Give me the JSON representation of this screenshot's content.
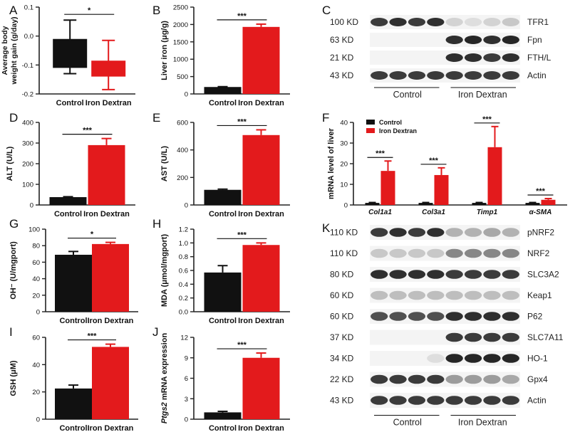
{
  "colors": {
    "control": "#111111",
    "iron": "#e31a1c",
    "axis": "#222222",
    "band": "#1a1a1a"
  },
  "group_labels": [
    "Control",
    "Iron Dextran"
  ],
  "chart_data": [
    {
      "panel": "A",
      "type": "box",
      "ylabel": "Average body weight gain (g/day)",
      "ylim": [
        -0.2,
        0.1
      ],
      "yticks": [
        "0.1",
        "0.0",
        "-0.1",
        "-0.2"
      ],
      "categories": [
        "Control",
        "Iron Dextran"
      ],
      "boxes": [
        {
          "whisker_low": -0.13,
          "q1": -0.11,
          "median": -0.11,
          "q3": -0.01,
          "whisker_high": 0.055
        },
        {
          "whisker_low": -0.185,
          "q1": -0.14,
          "median": -0.14,
          "q3": -0.085,
          "whisker_high": -0.015
        }
      ],
      "significance": "*"
    },
    {
      "panel": "B",
      "type": "bar",
      "ylabel": "Liver iron (μg/g)",
      "ylim": [
        0,
        2500
      ],
      "yticks": [
        "0",
        "500",
        "1000",
        "1500",
        "2000",
        "2500"
      ],
      "categories": [
        "Control",
        "Iron Dextran"
      ],
      "values": [
        200,
        1930
      ],
      "errors": [
        10,
        80
      ],
      "significance": "***"
    },
    {
      "panel": "D",
      "type": "bar",
      "ylabel": "ALT (U/L)",
      "ylim": [
        0,
        400
      ],
      "yticks": [
        "0",
        "100",
        "200",
        "300",
        "400"
      ],
      "categories": [
        "Control",
        "Iron Dextran"
      ],
      "values": [
        38,
        290
      ],
      "errors": [
        2,
        32
      ],
      "significance": "***"
    },
    {
      "panel": "E",
      "type": "bar",
      "ylabel": "AST (U/L)",
      "ylim": [
        0,
        600
      ],
      "yticks": [
        "0",
        "200",
        "400",
        "600"
      ],
      "categories": [
        "Control",
        "Iron Dextran"
      ],
      "values": [
        110,
        508
      ],
      "errors": [
        5,
        38
      ],
      "significance": "***"
    },
    {
      "panel": "F",
      "type": "bar",
      "ylabel": "mRNA level of  liver",
      "ylim": [
        0,
        40
      ],
      "yticks": [
        "0",
        "10",
        "20",
        "30",
        "40"
      ],
      "categories": [
        "Col1a1",
        "Col3a1",
        "Timp1",
        "α-SMA"
      ],
      "series": [
        {
          "name": "Control",
          "values": [
            1,
            1,
            1,
            1
          ],
          "errors": [
            0.2,
            0.2,
            0.2,
            0.2
          ]
        },
        {
          "name": "Iron Dextran",
          "values": [
            16.5,
            14.5,
            28,
            2.5
          ],
          "errors": [
            4.8,
            3.5,
            10,
            0.6
          ]
        }
      ],
      "significance": [
        "***",
        "***",
        "***",
        "***"
      ]
    },
    {
      "panel": "G",
      "type": "bar",
      "ylabel": "OH⁻ (U/mgport)",
      "ylim": [
        0,
        100
      ],
      "yticks": [
        "0",
        "20",
        "40",
        "60",
        "80",
        "100"
      ],
      "categories": [
        "Control",
        "Iron Dextran"
      ],
      "values": [
        69,
        82
      ],
      "errors": [
        4,
        2
      ],
      "significance": "*"
    },
    {
      "panel": "H",
      "type": "bar",
      "ylabel": "MDA (μmol/mgport)",
      "ylim": [
        0,
        1.2
      ],
      "yticks": [
        "0.0",
        "0.2",
        "0.4",
        "0.6",
        "0.8",
        "1.0",
        "1.2"
      ],
      "categories": [
        "Control",
        "Iron Dextran"
      ],
      "values": [
        0.57,
        0.97
      ],
      "errors": [
        0.1,
        0.03
      ],
      "significance": "***"
    },
    {
      "panel": "I",
      "type": "bar",
      "ylabel": "GSH (μM)",
      "ylim": [
        0,
        60
      ],
      "yticks": [
        "0",
        "20",
        "40",
        "60"
      ],
      "categories": [
        "Control",
        "Iron Dextran"
      ],
      "values": [
        22.5,
        53
      ],
      "errors": [
        2.5,
        2
      ],
      "significance": "***"
    },
    {
      "panel": "J",
      "type": "bar",
      "ylabel": "mRNA expression",
      "ylabel_italic": "Ptgs2",
      "ylim": [
        0,
        12
      ],
      "yticks": [
        "0",
        "3",
        "6",
        "9",
        "12"
      ],
      "categories": [
        "Control",
        "Iron Dextran"
      ],
      "values": [
        1,
        9
      ],
      "errors": [
        0.15,
        0.7
      ],
      "significance": "***"
    }
  ],
  "blots": {
    "C": {
      "panel": "C",
      "group_labels": [
        "Control",
        "Iron Dextran"
      ],
      "rows": [
        {
          "size": "100 KD",
          "protein": "TFR1",
          "intensities": [
            0.85,
            0.9,
            0.85,
            0.9,
            0.15,
            0.1,
            0.15,
            0.2
          ]
        },
        {
          "size": "63 KD",
          "protein": "Fpn",
          "intensities": [
            0,
            0,
            0,
            0,
            0.9,
            0.95,
            0.9,
            0.95
          ]
        },
        {
          "size": "21 KD",
          "protein": "FTH/L",
          "intensities": [
            0,
            0,
            0,
            0,
            0.9,
            0.9,
            0.85,
            0.9
          ]
        },
        {
          "size": "43 KD",
          "protein": "Actin",
          "intensities": [
            0.85,
            0.85,
            0.85,
            0.85,
            0.85,
            0.85,
            0.85,
            0.85
          ]
        }
      ]
    },
    "K": {
      "panel": "K",
      "group_labels": [
        "Control",
        "Iron Dextran"
      ],
      "rows": [
        {
          "size": "110 KD",
          "protein": "pNRF2",
          "intensities": [
            0.85,
            0.9,
            0.85,
            0.9,
            0.3,
            0.3,
            0.35,
            0.3
          ]
        },
        {
          "size": "110 KD",
          "protein": "NRF2",
          "intensities": [
            0.2,
            0.2,
            0.2,
            0.2,
            0.5,
            0.5,
            0.5,
            0.5
          ]
        },
        {
          "size": "80 KD",
          "protein": "SLC3A2",
          "intensities": [
            0.9,
            0.9,
            0.9,
            0.9,
            0.85,
            0.85,
            0.85,
            0.85
          ]
        },
        {
          "size": "60 KD",
          "protein": "Keap1",
          "intensities": [
            0.25,
            0.25,
            0.25,
            0.25,
            0.25,
            0.25,
            0.25,
            0.25
          ]
        },
        {
          "size": "60 KD",
          "protein": "P62",
          "intensities": [
            0.75,
            0.75,
            0.75,
            0.75,
            0.9,
            0.9,
            0.9,
            0.9
          ]
        },
        {
          "size": "37 KD",
          "protein": "SLC7A11",
          "intensities": [
            0,
            0,
            0,
            0,
            0.85,
            0.85,
            0.85,
            0.85
          ]
        },
        {
          "size": "34 KD",
          "protein": "HO-1",
          "intensities": [
            0,
            0,
            0,
            0.1,
            0.95,
            0.95,
            0.95,
            0.95
          ]
        },
        {
          "size": "22 KD",
          "protein": "Gpx4",
          "intensities": [
            0.85,
            0.85,
            0.85,
            0.85,
            0.4,
            0.4,
            0.4,
            0.35
          ]
        },
        {
          "size": "43 KD",
          "protein": "Actin",
          "intensities": [
            0.85,
            0.85,
            0.85,
            0.85,
            0.85,
            0.85,
            0.85,
            0.85
          ]
        }
      ]
    }
  }
}
